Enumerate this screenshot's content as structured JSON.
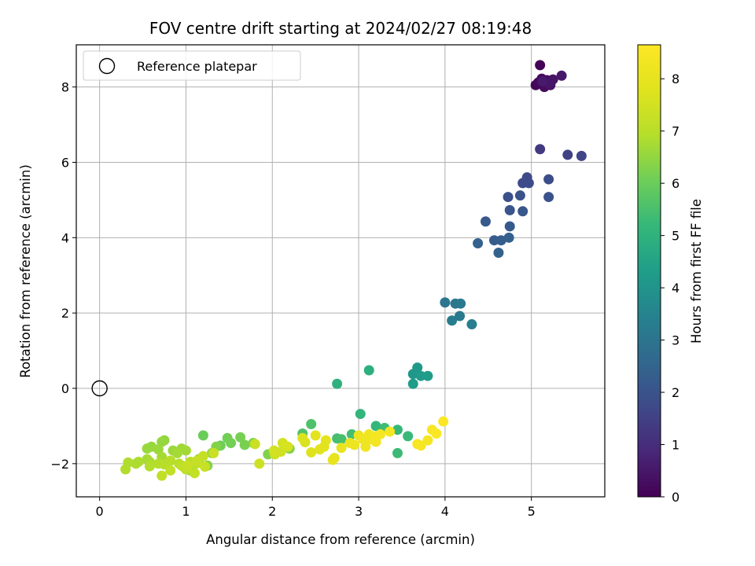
{
  "chart_data": {
    "type": "scatter",
    "title": "FOV centre drift starting at 2024/02/27 08:19:48",
    "xlabel": "Angular distance from reference (arcmin)",
    "ylabel": "Rotation from reference (arcmin)",
    "xlim": [
      -0.27,
      5.85
    ],
    "ylim": [
      -2.88,
      9.12
    ],
    "xticks": [
      0,
      1,
      2,
      3,
      4,
      5
    ],
    "yticks": [
      -2,
      0,
      2,
      4,
      6,
      8
    ],
    "xtick_labels": [
      "0",
      "1",
      "2",
      "3",
      "4",
      "5"
    ],
    "ytick_labels": [
      "−2",
      "0",
      "2",
      "4",
      "6",
      "8"
    ],
    "grid": true,
    "colormap": "viridis",
    "colorbar": {
      "label": "Hours from first FF file",
      "range": [
        0,
        8.65
      ],
      "ticks": [
        0,
        1,
        2,
        3,
        4,
        5,
        6,
        7,
        8
      ],
      "tick_labels": [
        "0",
        "1",
        "2",
        "3",
        "4",
        "5",
        "6",
        "7",
        "8"
      ]
    },
    "legend": {
      "position": "top-left",
      "entries": [
        "Reference platepar"
      ]
    },
    "reference_point": {
      "x": 0,
      "y": 0
    },
    "series": [
      {
        "name": "FOV centre",
        "points": [
          {
            "x": 5.1,
            "y": 8.58,
            "c": 0.05
          },
          {
            "x": 5.05,
            "y": 8.05,
            "c": 0.1
          },
          {
            "x": 5.08,
            "y": 8.12,
            "c": 0.15
          },
          {
            "x": 5.12,
            "y": 8.22,
            "c": 0.2
          },
          {
            "x": 5.15,
            "y": 8.0,
            "c": 0.25
          },
          {
            "x": 5.18,
            "y": 8.18,
            "c": 0.3
          },
          {
            "x": 5.22,
            "y": 8.05,
            "c": 0.35
          },
          {
            "x": 5.25,
            "y": 8.2,
            "c": 0.4
          },
          {
            "x": 5.2,
            "y": 8.1,
            "c": 0.45
          },
          {
            "x": 5.35,
            "y": 8.3,
            "c": 0.5
          },
          {
            "x": 5.13,
            "y": 8.15,
            "c": 0.55
          },
          {
            "x": 5.1,
            "y": 6.35,
            "c": 1.3
          },
          {
            "x": 5.42,
            "y": 6.2,
            "c": 1.5
          },
          {
            "x": 5.58,
            "y": 6.17,
            "c": 1.6
          },
          {
            "x": 4.95,
            "y": 5.6,
            "c": 1.7
          },
          {
            "x": 4.9,
            "y": 5.45,
            "c": 1.75
          },
          {
            "x": 4.97,
            "y": 5.45,
            "c": 1.8
          },
          {
            "x": 5.2,
            "y": 5.55,
            "c": 1.85
          },
          {
            "x": 4.73,
            "y": 5.08,
            "c": 1.9
          },
          {
            "x": 4.87,
            "y": 5.12,
            "c": 1.95
          },
          {
            "x": 5.2,
            "y": 5.08,
            "c": 2.0
          },
          {
            "x": 4.75,
            "y": 4.73,
            "c": 2.05
          },
          {
            "x": 4.9,
            "y": 4.7,
            "c": 2.1
          },
          {
            "x": 4.47,
            "y": 4.43,
            "c": 2.15
          },
          {
            "x": 4.75,
            "y": 4.3,
            "c": 2.2
          },
          {
            "x": 4.57,
            "y": 3.93,
            "c": 2.25
          },
          {
            "x": 4.65,
            "y": 3.93,
            "c": 2.3
          },
          {
            "x": 4.74,
            "y": 4.0,
            "c": 2.35
          },
          {
            "x": 4.38,
            "y": 3.85,
            "c": 2.4
          },
          {
            "x": 4.62,
            "y": 3.6,
            "c": 2.45
          },
          {
            "x": 4.0,
            "y": 2.28,
            "c": 3.05
          },
          {
            "x": 4.12,
            "y": 2.25,
            "c": 3.1
          },
          {
            "x": 4.18,
            "y": 2.25,
            "c": 3.15
          },
          {
            "x": 4.17,
            "y": 1.92,
            "c": 3.2
          },
          {
            "x": 4.08,
            "y": 1.8,
            "c": 3.25
          },
          {
            "x": 4.31,
            "y": 1.7,
            "c": 3.3
          },
          {
            "x": 3.63,
            "y": 0.38,
            "c": 4.1
          },
          {
            "x": 3.68,
            "y": 0.55,
            "c": 4.15
          },
          {
            "x": 3.72,
            "y": 0.33,
            "c": 4.2
          },
          {
            "x": 3.8,
            "y": 0.33,
            "c": 4.25
          },
          {
            "x": 3.63,
            "y": 0.12,
            "c": 4.3
          },
          {
            "x": 3.12,
            "y": 0.48,
            "c": 4.9
          },
          {
            "x": 2.75,
            "y": 0.12,
            "c": 4.95
          },
          {
            "x": 3.02,
            "y": -0.68,
            "c": 5.1
          },
          {
            "x": 3.2,
            "y": -1.0,
            "c": 5.15
          },
          {
            "x": 3.45,
            "y": -1.1,
            "c": 5.2
          },
          {
            "x": 3.57,
            "y": -1.27,
            "c": 5.25
          },
          {
            "x": 3.45,
            "y": -1.72,
            "c": 5.3
          },
          {
            "x": 3.3,
            "y": -1.05,
            "c": 5.35
          },
          {
            "x": 2.92,
            "y": -1.22,
            "c": 5.4
          },
          {
            "x": 2.75,
            "y": -1.33,
            "c": 5.45
          },
          {
            "x": 2.8,
            "y": -1.35,
            "c": 5.5
          },
          {
            "x": 2.45,
            "y": -0.95,
            "c": 5.55
          },
          {
            "x": 2.35,
            "y": -1.2,
            "c": 5.6
          },
          {
            "x": 1.2,
            "y": -1.25,
            "c": 6.0
          },
          {
            "x": 1.4,
            "y": -1.52,
            "c": 6.05
          },
          {
            "x": 1.48,
            "y": -1.32,
            "c": 6.1
          },
          {
            "x": 1.52,
            "y": -1.45,
            "c": 6.12
          },
          {
            "x": 1.63,
            "y": -1.3,
            "c": 6.15
          },
          {
            "x": 1.68,
            "y": -1.5,
            "c": 6.18
          },
          {
            "x": 1.78,
            "y": -1.45,
            "c": 6.2
          },
          {
            "x": 2.2,
            "y": -1.6,
            "c": 6.25
          },
          {
            "x": 1.95,
            "y": -1.75,
            "c": 6.28
          },
          {
            "x": 1.35,
            "y": -1.55,
            "c": 6.3
          },
          {
            "x": 1.25,
            "y": -2.05,
            "c": 6.35
          },
          {
            "x": 1.3,
            "y": -1.72,
            "c": 6.4
          },
          {
            "x": 1.15,
            "y": -1.88,
            "c": 6.42
          },
          {
            "x": 1.05,
            "y": -2.18,
            "c": 6.45
          },
          {
            "x": 0.75,
            "y": -1.38,
            "c": 6.5
          },
          {
            "x": 0.72,
            "y": -1.42,
            "c": 6.52
          },
          {
            "x": 0.6,
            "y": -1.55,
            "c": 6.55
          },
          {
            "x": 0.55,
            "y": -1.6,
            "c": 6.58
          },
          {
            "x": 0.68,
            "y": -1.62,
            "c": 6.6
          },
          {
            "x": 0.85,
            "y": -1.65,
            "c": 6.62
          },
          {
            "x": 0.95,
            "y": -1.6,
            "c": 6.65
          },
          {
            "x": 1.0,
            "y": -1.65,
            "c": 6.68
          },
          {
            "x": 0.9,
            "y": -1.72,
            "c": 6.7
          },
          {
            "x": 0.72,
            "y": -1.82,
            "c": 6.72
          },
          {
            "x": 0.55,
            "y": -1.88,
            "c": 6.75
          },
          {
            "x": 0.58,
            "y": -1.95,
            "c": 6.78
          },
          {
            "x": 0.45,
            "y": -1.95,
            "c": 6.8
          },
          {
            "x": 0.42,
            "y": -2.0,
            "c": 6.82
          },
          {
            "x": 0.33,
            "y": -1.97,
            "c": 6.85
          },
          {
            "x": 0.3,
            "y": -2.15,
            "c": 6.88
          },
          {
            "x": 0.58,
            "y": -2.07,
            "c": 6.9
          },
          {
            "x": 0.68,
            "y": -2.0,
            "c": 6.92
          },
          {
            "x": 0.75,
            "y": -2.02,
            "c": 6.95
          },
          {
            "x": 0.82,
            "y": -1.92,
            "c": 6.98
          },
          {
            "x": 0.92,
            "y": -2.0,
            "c": 7.0
          },
          {
            "x": 0.98,
            "y": -2.1,
            "c": 7.02
          },
          {
            "x": 1.05,
            "y": -1.95,
            "c": 7.05
          },
          {
            "x": 1.12,
            "y": -2.0,
            "c": 7.08
          },
          {
            "x": 0.95,
            "y": -2.05,
            "c": 7.1
          },
          {
            "x": 1.0,
            "y": -2.15,
            "c": 7.12
          },
          {
            "x": 0.72,
            "y": -2.32,
            "c": 7.15
          },
          {
            "x": 0.82,
            "y": -2.18,
            "c": 7.18
          },
          {
            "x": 1.1,
            "y": -2.25,
            "c": 7.2
          },
          {
            "x": 1.2,
            "y": -1.8,
            "c": 7.22
          },
          {
            "x": 1.13,
            "y": -1.92,
            "c": 7.25
          },
          {
            "x": 1.02,
            "y": -2.05,
            "c": 7.28
          },
          {
            "x": 1.22,
            "y": -2.08,
            "c": 7.3
          },
          {
            "x": 1.32,
            "y": -1.72,
            "c": 7.32
          },
          {
            "x": 1.8,
            "y": -1.48,
            "c": 7.35
          },
          {
            "x": 1.85,
            "y": -2.0,
            "c": 7.38
          },
          {
            "x": 2.03,
            "y": -1.75,
            "c": 7.4
          },
          {
            "x": 2.1,
            "y": -1.68,
            "c": 7.45
          },
          {
            "x": 2.02,
            "y": -1.65,
            "c": 7.5
          },
          {
            "x": 2.12,
            "y": -1.45,
            "c": 7.55
          },
          {
            "x": 2.18,
            "y": -1.55,
            "c": 7.6
          },
          {
            "x": 2.38,
            "y": -1.43,
            "c": 7.65
          },
          {
            "x": 2.35,
            "y": -1.32,
            "c": 7.7
          },
          {
            "x": 2.45,
            "y": -1.7,
            "c": 7.75
          },
          {
            "x": 2.55,
            "y": -1.62,
            "c": 7.8
          },
          {
            "x": 2.6,
            "y": -1.55,
            "c": 7.85
          },
          {
            "x": 2.5,
            "y": -1.25,
            "c": 7.88
          },
          {
            "x": 2.62,
            "y": -1.38,
            "c": 7.9
          },
          {
            "x": 2.72,
            "y": -1.85,
            "c": 7.95
          },
          {
            "x": 2.7,
            "y": -1.9,
            "c": 8.0
          },
          {
            "x": 2.8,
            "y": -1.58,
            "c": 8.05
          },
          {
            "x": 2.9,
            "y": -1.45,
            "c": 8.1
          },
          {
            "x": 2.95,
            "y": -1.5,
            "c": 8.15
          },
          {
            "x": 3.0,
            "y": -1.25,
            "c": 8.2
          },
          {
            "x": 3.05,
            "y": -1.35,
            "c": 8.22
          },
          {
            "x": 3.08,
            "y": -1.55,
            "c": 8.25
          },
          {
            "x": 3.12,
            "y": -1.22,
            "c": 8.28
          },
          {
            "x": 3.15,
            "y": -1.35,
            "c": 8.3
          },
          {
            "x": 3.2,
            "y": -1.42,
            "c": 8.32
          },
          {
            "x": 3.18,
            "y": -1.28,
            "c": 8.35
          },
          {
            "x": 3.25,
            "y": -1.22,
            "c": 8.38
          },
          {
            "x": 3.36,
            "y": -1.15,
            "c": 8.4
          },
          {
            "x": 3.8,
            "y": -1.38,
            "c": 8.42
          },
          {
            "x": 3.72,
            "y": -1.52,
            "c": 8.45
          },
          {
            "x": 3.68,
            "y": -1.48,
            "c": 8.48
          },
          {
            "x": 3.85,
            "y": -1.1,
            "c": 8.5
          },
          {
            "x": 3.9,
            "y": -1.2,
            "c": 8.55
          },
          {
            "x": 3.98,
            "y": -0.88,
            "c": 8.6
          }
        ]
      }
    ]
  }
}
